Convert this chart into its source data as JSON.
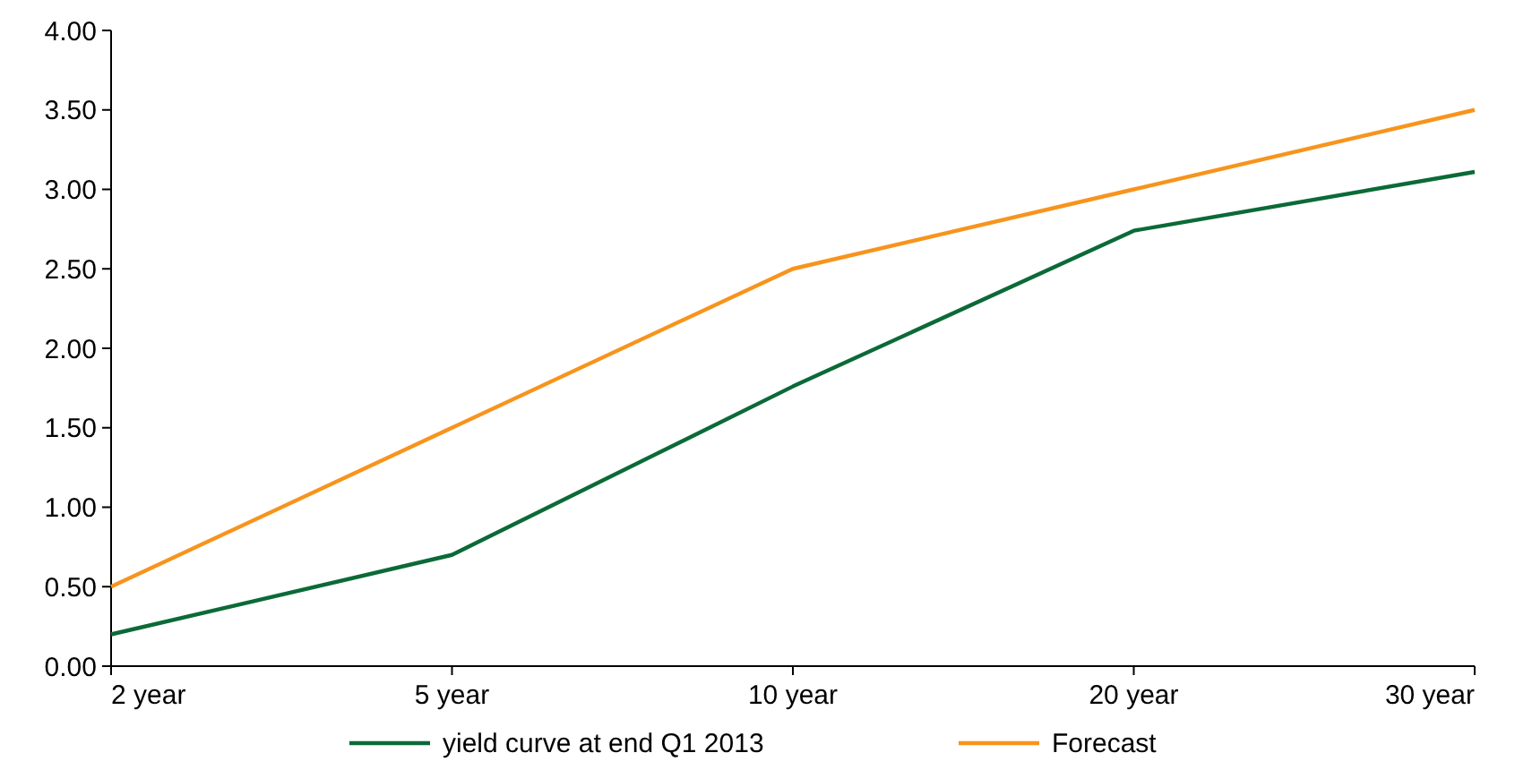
{
  "chart_data": {
    "type": "line",
    "categories": [
      "2 year",
      "5 year",
      "10 year",
      "20 year",
      "30 year"
    ],
    "series": [
      {
        "name": "yield curve at end Q1 2013",
        "color": "#0b6a37",
        "values": [
          0.2,
          0.7,
          1.76,
          2.74,
          3.11
        ]
      },
      {
        "name": "Forecast",
        "color": "#f7941d",
        "values": [
          0.5,
          1.5,
          2.5,
          3.0,
          3.5
        ]
      }
    ],
    "ylim": [
      0,
      4
    ],
    "yticks": [
      {
        "value": 0,
        "label": "0.00"
      },
      {
        "value": 0.5,
        "label": "0.50"
      },
      {
        "value": 1,
        "label": "1.00"
      },
      {
        "value": 1.5,
        "label": "1.50"
      },
      {
        "value": 2,
        "label": "2.00"
      },
      {
        "value": 2.5,
        "label": "2.50"
      },
      {
        "value": 3,
        "label": "3.00"
      },
      {
        "value": 3.5,
        "label": "3.50"
      },
      {
        "value": 4,
        "label": "4.00"
      }
    ],
    "grid": false,
    "legend": "bottom",
    "marker": "none",
    "line_style": "solid"
  }
}
